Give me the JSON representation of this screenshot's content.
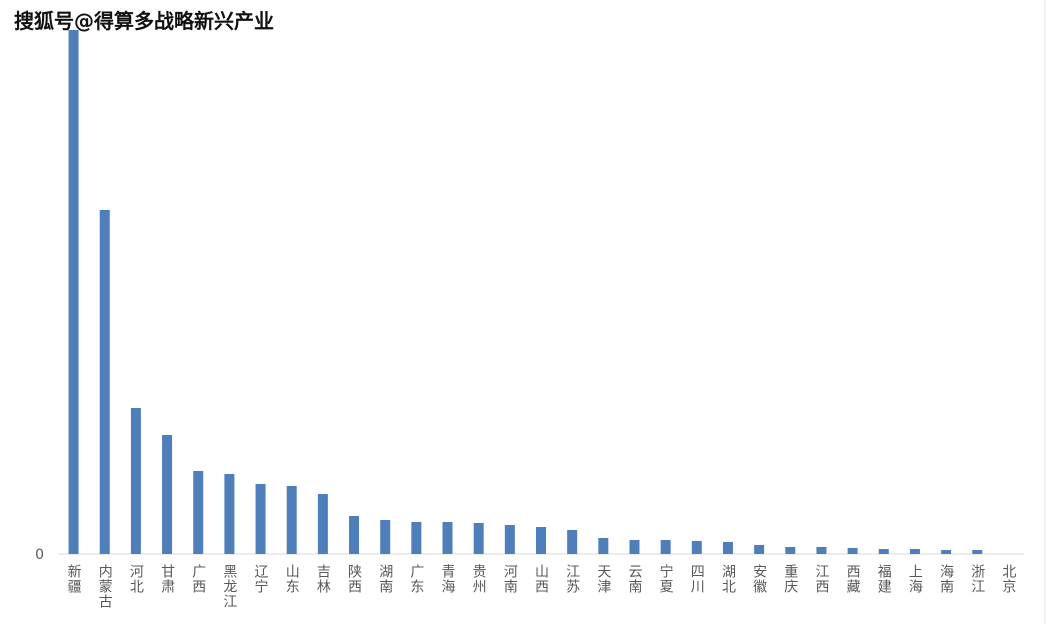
{
  "chart_data": {
    "type": "bar",
    "watermark": "搜狐号@得算多战略新兴产业",
    "categories": [
      "新疆",
      "内蒙古",
      "河北",
      "甘肃",
      "广西",
      "黑龙江",
      "辽宁",
      "山东",
      "吉林",
      "陕西",
      "湖南",
      "广东",
      "青海",
      "贵州",
      "河南",
      "山西",
      "江苏",
      "天津",
      "云南",
      "宁夏",
      "四川",
      "湖北",
      "安徽",
      "重庆",
      "江西",
      "西藏",
      "福建",
      "上海",
      "海南",
      "浙江",
      "北京"
    ],
    "values": [
      524,
      344,
      146,
      119,
      83,
      80,
      70,
      68,
      60,
      38,
      34,
      32,
      32,
      31,
      29,
      27,
      24,
      16,
      14,
      14,
      13,
      12,
      9,
      7,
      7,
      6,
      5,
      5,
      4,
      4,
      0
    ],
    "color": "#4f7fbb",
    "ylim": [
      0,
      530
    ],
    "yticks": [
      0
    ],
    "grid": false
  }
}
